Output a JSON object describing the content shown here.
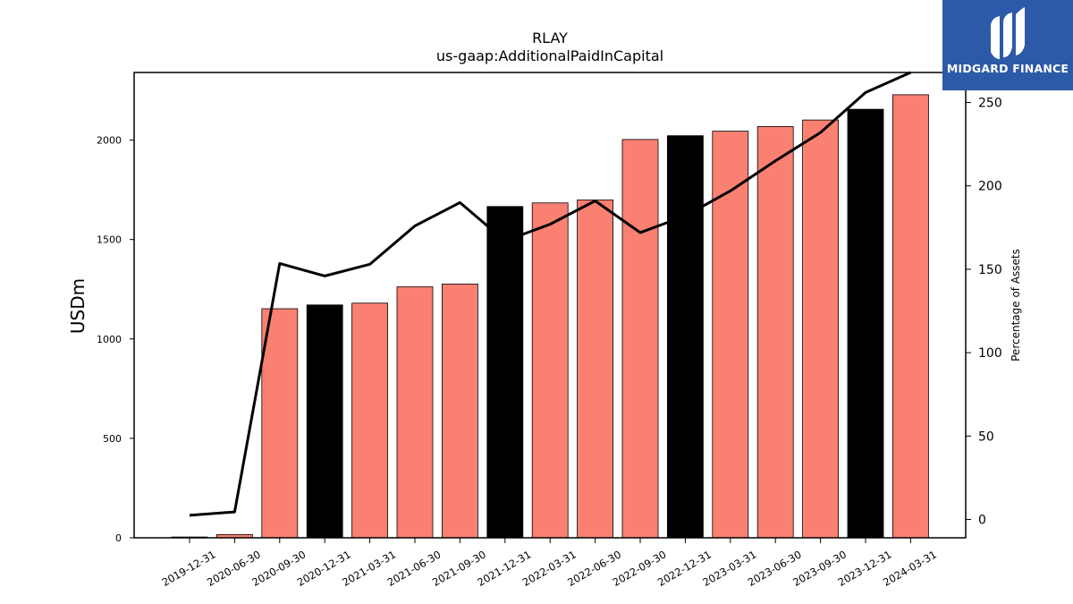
{
  "chart_data": {
    "type": "bar",
    "title": "RLAY",
    "subtitle": "us-gaap:AdditionalPaidInCapital",
    "ylabel": "USDm",
    "y2label": "Percentage of Assets",
    "categories": [
      "2019-12-31",
      "2020-06-30",
      "2020-09-30",
      "2020-12-31",
      "2021-03-31",
      "2021-06-30",
      "2021-09-30",
      "2021-12-31",
      "2022-03-31",
      "2022-06-30",
      "2022-09-30",
      "2022-12-31",
      "2023-03-31",
      "2023-06-30",
      "2023-09-30",
      "2023-12-31",
      "2024-03-31"
    ],
    "series": [
      {
        "kind": "bar",
        "values": [
          4,
          16,
          1152,
          1171,
          1180,
          1262,
          1276,
          1666,
          1684,
          1699,
          2003,
          2022,
          2045,
          2068,
          2101,
          2155,
          2228
        ],
        "colors": [
          "#000000",
          "#fa8072",
          "#fa8072",
          "#000000",
          "#fa8072",
          "#fa8072",
          "#fa8072",
          "#000000",
          "#fa8072",
          "#fa8072",
          "#fa8072",
          "#000000",
          "#fa8072",
          "#fa8072",
          "#fa8072",
          "#000000",
          "#fa8072"
        ]
      },
      {
        "kind": "line",
        "axis": "right",
        "color": "#000000",
        "values": [
          2.5,
          4.5,
          153.5,
          146,
          153,
          176,
          190,
          167,
          177,
          191,
          172,
          182,
          197,
          215,
          232,
          256,
          268
        ]
      }
    ],
    "ylim": [
      0,
      2340
    ],
    "y2lim": [
      -11,
      268
    ],
    "yticks": [
      0,
      500,
      1000,
      1500,
      2000
    ],
    "y2ticks": [
      0,
      50,
      100,
      150,
      200,
      250
    ],
    "grid": false
  },
  "logo": {
    "text": "MIDGARD FINANCE"
  }
}
